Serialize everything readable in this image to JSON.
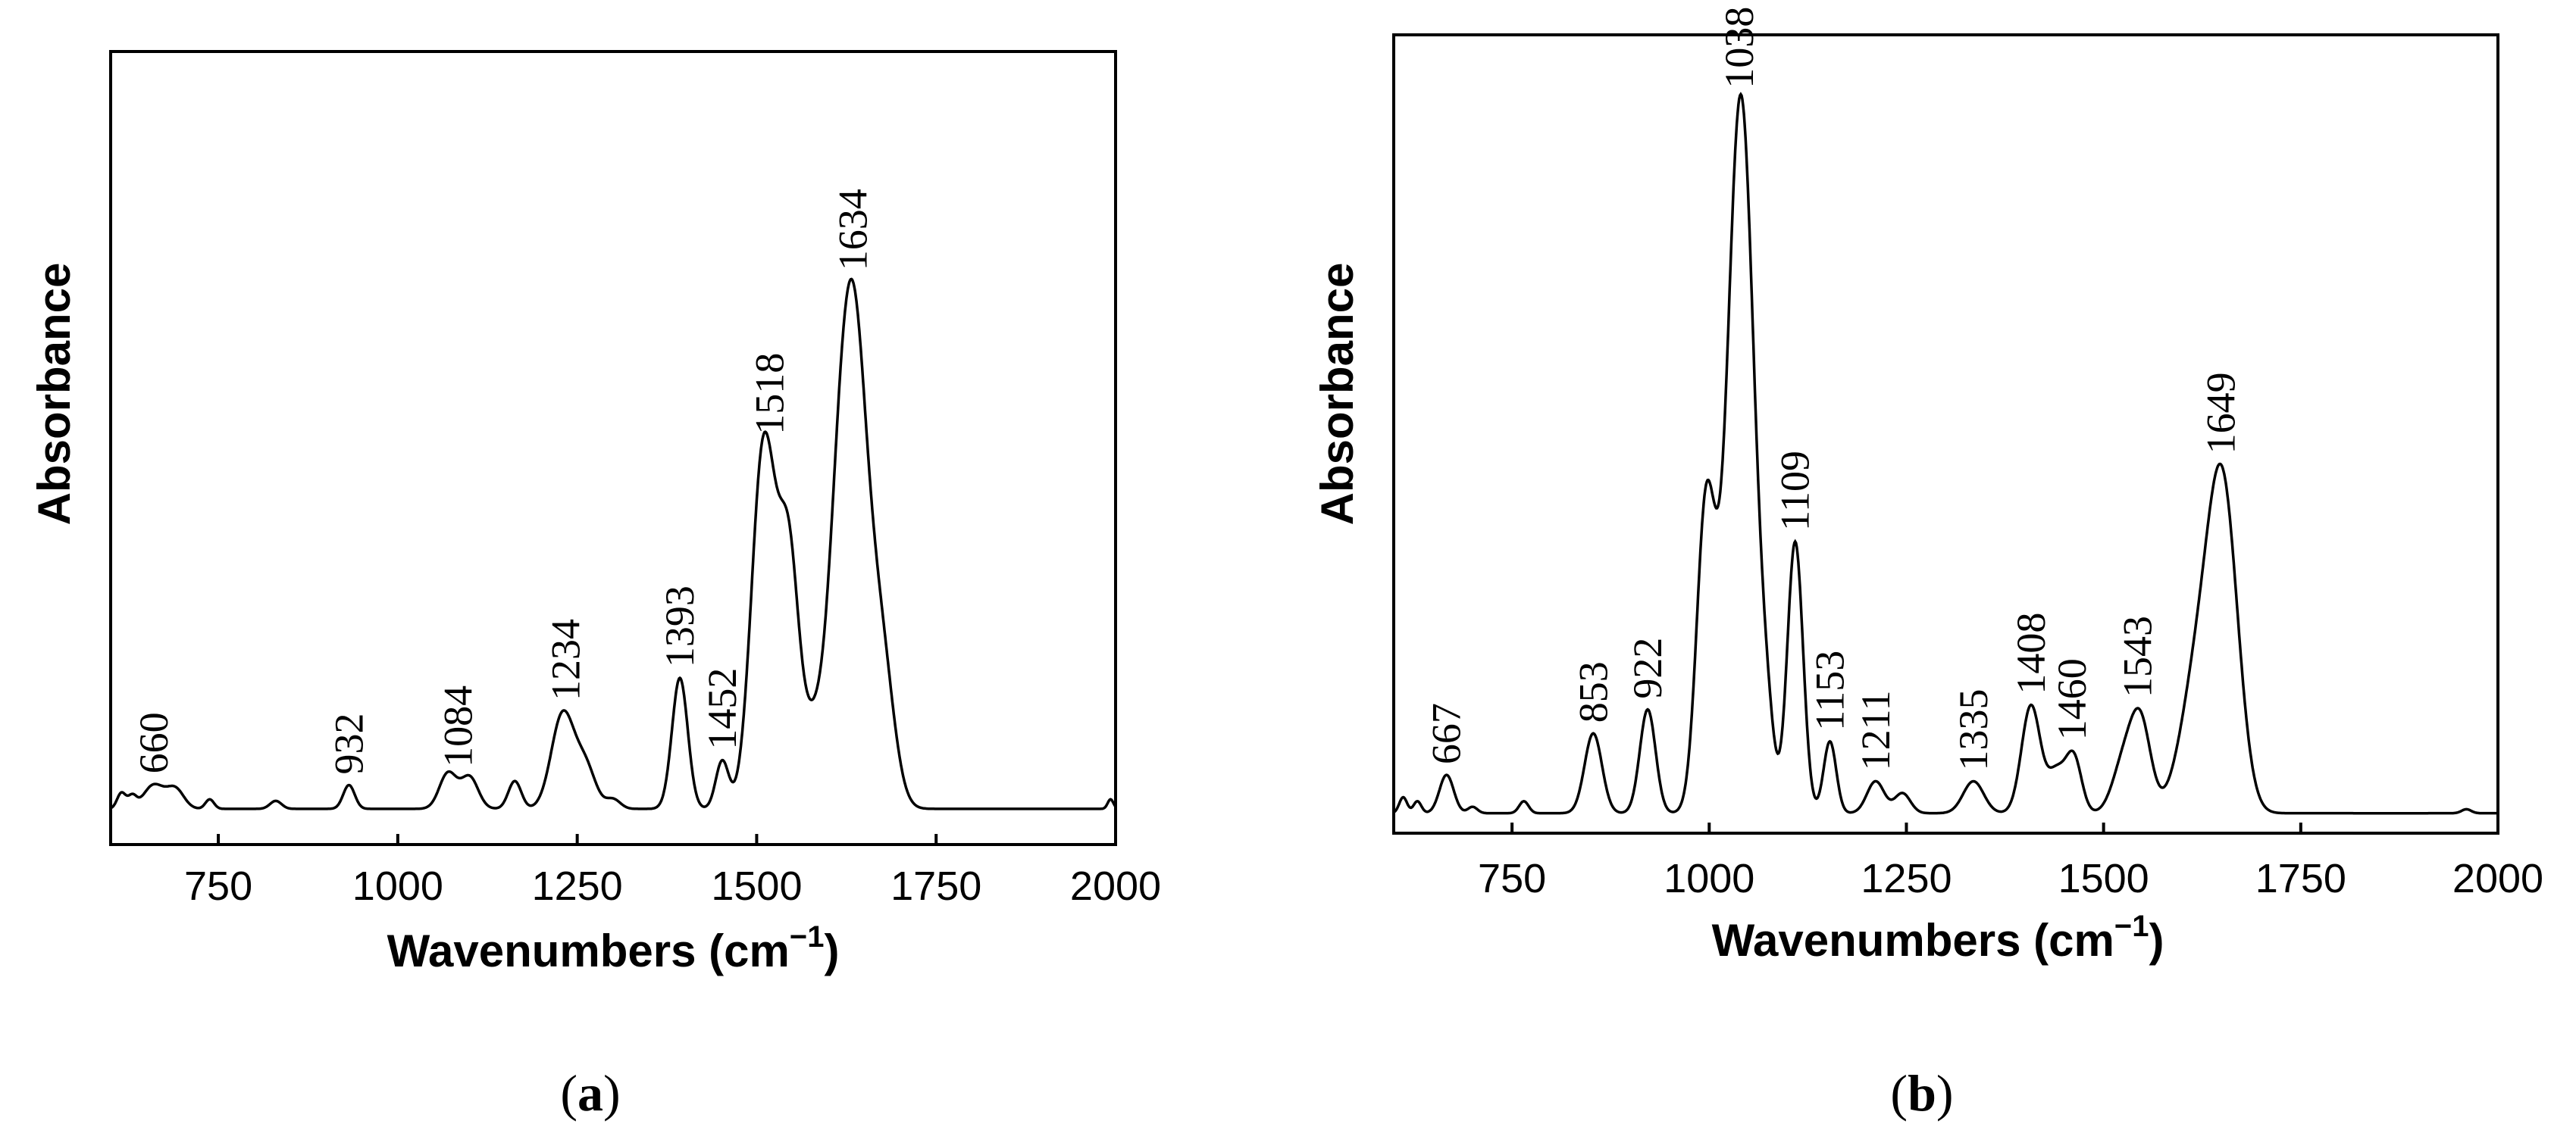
{
  "chart_data": [
    {
      "type": "line",
      "panel_label_open": "(",
      "panel_label_letter": "a",
      "panel_label_close": ")",
      "xlabel_main": "Wavenumbers (cm",
      "xlabel_sup": "−1",
      "xlabel_end": ")",
      "ylabel": "Absorbance",
      "xlim": [
        600,
        2000
      ],
      "ylim": [
        0,
        1
      ],
      "x_ticks": [
        750,
        1000,
        1250,
        1500,
        1750,
        2000
      ],
      "peak_labels": [
        {
          "x": 660,
          "text": "660"
        },
        {
          "x": 932,
          "text": "932"
        },
        {
          "x": 1084,
          "text": "1084"
        },
        {
          "x": 1234,
          "text": "1234"
        },
        {
          "x": 1393,
          "text": "1393"
        },
        {
          "x": 1452,
          "text": "1452"
        },
        {
          "x": 1518,
          "text": "1518"
        },
        {
          "x": 1634,
          "text": "1634"
        }
      ],
      "baseline": 0.045,
      "peaks": [
        {
          "c": 615,
          "h": 0.02,
          "w": 6
        },
        {
          "c": 630,
          "h": 0.015,
          "w": 6
        },
        {
          "c": 660,
          "h": 0.03,
          "w": 14
        },
        {
          "c": 690,
          "h": 0.025,
          "w": 12
        },
        {
          "c": 738,
          "h": 0.012,
          "w": 6
        },
        {
          "c": 830,
          "h": 0.01,
          "w": 8
        },
        {
          "c": 932,
          "h": 0.03,
          "w": 8
        },
        {
          "c": 1070,
          "h": 0.045,
          "w": 12
        },
        {
          "c": 1100,
          "h": 0.04,
          "w": 12
        },
        {
          "c": 1163,
          "h": 0.035,
          "w": 9
        },
        {
          "c": 1230,
          "h": 0.12,
          "w": 16
        },
        {
          "c": 1262,
          "h": 0.05,
          "w": 14
        },
        {
          "c": 1300,
          "h": 0.012,
          "w": 10
        },
        {
          "c": 1393,
          "h": 0.165,
          "w": 11
        },
        {
          "c": 1452,
          "h": 0.06,
          "w": 9
        },
        {
          "c": 1510,
          "h": 0.46,
          "w": 17
        },
        {
          "c": 1545,
          "h": 0.3,
          "w": 14
        },
        {
          "c": 1578,
          "h": 0.09,
          "w": 15
        },
        {
          "c": 1612,
          "h": 0.25,
          "w": 16
        },
        {
          "c": 1636,
          "h": 0.55,
          "w": 18
        },
        {
          "c": 1672,
          "h": 0.2,
          "w": 18
        },
        {
          "c": 1993,
          "h": 0.012,
          "w": 4
        }
      ]
    },
    {
      "type": "line",
      "panel_label_open": "(",
      "panel_label_letter": "b",
      "panel_label_close": ")",
      "xlabel_main": "Wavenumbers (cm",
      "xlabel_sup": "−1",
      "xlabel_end": ")",
      "ylabel": "Absorbance",
      "xlim": [
        600,
        2000
      ],
      "ylim": [
        0,
        1
      ],
      "x_ticks": [
        750,
        1000,
        1250,
        1500,
        1750,
        2000
      ],
      "peak_labels": [
        {
          "x": 667,
          "text": "667"
        },
        {
          "x": 853,
          "text": "853"
        },
        {
          "x": 922,
          "text": "922"
        },
        {
          "x": 1038,
          "text": "1038"
        },
        {
          "x": 1109,
          "text": "1109"
        },
        {
          "x": 1153,
          "text": "1153"
        },
        {
          "x": 1211,
          "text": "1211"
        },
        {
          "x": 1335,
          "text": "1335"
        },
        {
          "x": 1408,
          "text": "1408"
        },
        {
          "x": 1460,
          "text": "1460"
        },
        {
          "x": 1543,
          "text": "1543"
        },
        {
          "x": 1649,
          "text": "1649"
        }
      ],
      "baseline": 0.025,
      "peaks": [
        {
          "c": 612,
          "h": 0.02,
          "w": 5
        },
        {
          "c": 630,
          "h": 0.015,
          "w": 5
        },
        {
          "c": 667,
          "h": 0.048,
          "w": 9
        },
        {
          "c": 700,
          "h": 0.008,
          "w": 6
        },
        {
          "c": 765,
          "h": 0.015,
          "w": 6
        },
        {
          "c": 853,
          "h": 0.1,
          "w": 11
        },
        {
          "c": 922,
          "h": 0.13,
          "w": 10
        },
        {
          "c": 996,
          "h": 0.38,
          "w": 12
        },
        {
          "c": 1040,
          "h": 0.9,
          "w": 17
        },
        {
          "c": 1074,
          "h": 0.07,
          "w": 9
        },
        {
          "c": 1109,
          "h": 0.34,
          "w": 10
        },
        {
          "c": 1153,
          "h": 0.09,
          "w": 8
        },
        {
          "c": 1211,
          "h": 0.04,
          "w": 11
        },
        {
          "c": 1245,
          "h": 0.025,
          "w": 10
        },
        {
          "c": 1335,
          "h": 0.04,
          "w": 13
        },
        {
          "c": 1408,
          "h": 0.135,
          "w": 12
        },
        {
          "c": 1440,
          "h": 0.05,
          "w": 11
        },
        {
          "c": 1462,
          "h": 0.07,
          "w": 10
        },
        {
          "c": 1525,
          "h": 0.06,
          "w": 14
        },
        {
          "c": 1547,
          "h": 0.11,
          "w": 13
        },
        {
          "c": 1620,
          "h": 0.17,
          "w": 22
        },
        {
          "c": 1652,
          "h": 0.37,
          "w": 19
        },
        {
          "c": 1960,
          "h": 0.005,
          "w": 6
        }
      ]
    }
  ]
}
